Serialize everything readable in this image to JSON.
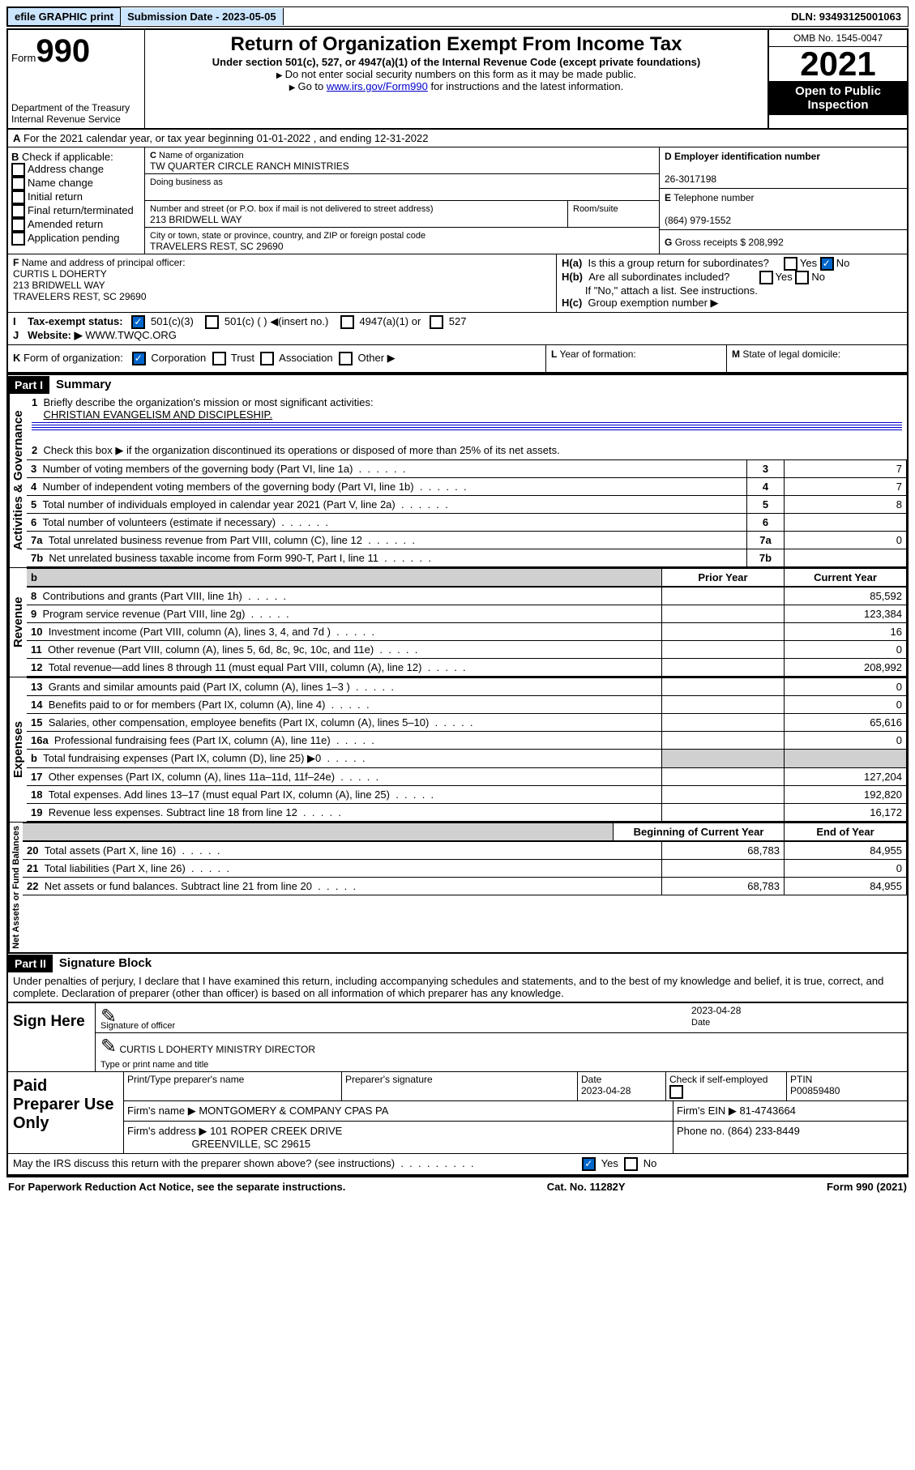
{
  "top": {
    "efile": "efile GRAPHIC print",
    "submission": "Submission Date - 2023-05-05",
    "dln": "DLN: 93493125001063"
  },
  "header": {
    "form_word": "Form",
    "form_num": "990",
    "title": "Return of Organization Exempt From Income Tax",
    "sub1": "Under section 501(c), 527, or 4947(a)(1) of the Internal Revenue Code (except private foundations)",
    "sub2": "Do not enter social security numbers on this form as it may be made public.",
    "sub3_a": "Go to ",
    "sub3_link": "www.irs.gov/Form990",
    "sub3_b": " for instructions and the latest information.",
    "dept": "Department of the Treasury",
    "irs": "Internal Revenue Service",
    "omb": "OMB No. 1545-0047",
    "year": "2021",
    "open": "Open to Public Inspection"
  },
  "A": {
    "line": "For the 2021 calendar year, or tax year beginning 01-01-2022   , and ending 12-31-2022"
  },
  "B": {
    "hdr": "Check if applicable:",
    "opts": [
      "Address change",
      "Name change",
      "Initial return",
      "Final return/terminated",
      "Amended return",
      "Application pending"
    ]
  },
  "C": {
    "name_lbl": "Name of organization",
    "name": "TW QUARTER CIRCLE RANCH MINISTRIES",
    "dba_lbl": "Doing business as",
    "addr_lbl": "Number and street (or P.O. box if mail is not delivered to street address)",
    "room_lbl": "Room/suite",
    "addr": "213 BRIDWELL WAY",
    "city_lbl": "City or town, state or province, country, and ZIP or foreign postal code",
    "city": "TRAVELERS REST, SC  29690"
  },
  "D": {
    "lbl": "Employer identification number",
    "val": "26-3017198"
  },
  "E": {
    "lbl": "Telephone number",
    "val": "(864) 979-1552"
  },
  "G": {
    "lbl": "Gross receipts $",
    "val": "208,992"
  },
  "F": {
    "lbl": "Name and address of principal officer:",
    "name": "CURTIS L DOHERTY",
    "addr": "213 BRIDWELL WAY",
    "city": "TRAVELERS REST, SC  29690"
  },
  "H": {
    "a": "Is this a group return for subordinates?",
    "b": "Are all subordinates included?",
    "note": "If \"No,\" attach a list. See instructions.",
    "c": "Group exemption number"
  },
  "I": {
    "lbl": "Tax-exempt status:",
    "c1": "501(c)(3)",
    "c2": "501(c) (  )",
    "c2b": "(insert no.)",
    "c3": "4947(a)(1) or",
    "c4": "527"
  },
  "J": {
    "lbl": "Website:",
    "val": "WWW.TWQC.ORG"
  },
  "K": {
    "lbl": "Form of organization:",
    "opts": [
      "Corporation",
      "Trust",
      "Association",
      "Other"
    ]
  },
  "L": {
    "lbl": "Year of formation:"
  },
  "M": {
    "lbl": "State of legal domicile:"
  },
  "part1": {
    "hdr": "Part I",
    "title": "Summary",
    "line1_lbl": "Briefly describe the organization's mission or most significant activities:",
    "line1_val": "CHRISTIAN EVANGELISM AND DISCIPLESHIP.",
    "line2": "Check this box ▶        if the organization discontinued its operations or disposed of more than 25% of its net assets.",
    "rows_gov": [
      {
        "n": "3",
        "lbl": "Number of voting members of the governing body (Part VI, line 1a)",
        "val": "7"
      },
      {
        "n": "4",
        "lbl": "Number of independent voting members of the governing body (Part VI, line 1b)",
        "val": "7"
      },
      {
        "n": "5",
        "lbl": "Total number of individuals employed in calendar year 2021 (Part V, line 2a)",
        "val": "8"
      },
      {
        "n": "6",
        "lbl": "Total number of volunteers (estimate if necessary)",
        "val": ""
      },
      {
        "n": "7a",
        "lbl": "Total unrelated business revenue from Part VIII, column (C), line 12",
        "val": "0"
      },
      {
        "n": "7b",
        "lbl": "Net unrelated business taxable income from Form 990-T, Part I, line 11",
        "val": ""
      }
    ],
    "col_prior": "Prior Year",
    "col_current": "Current Year",
    "rows_rev": [
      {
        "n": "8",
        "lbl": "Contributions and grants (Part VIII, line 1h)",
        "p": "",
        "c": "85,592"
      },
      {
        "n": "9",
        "lbl": "Program service revenue (Part VIII, line 2g)",
        "p": "",
        "c": "123,384"
      },
      {
        "n": "10",
        "lbl": "Investment income (Part VIII, column (A), lines 3, 4, and 7d )",
        "p": "",
        "c": "16"
      },
      {
        "n": "11",
        "lbl": "Other revenue (Part VIII, column (A), lines 5, 6d, 8c, 9c, 10c, and 11e)",
        "p": "",
        "c": "0"
      },
      {
        "n": "12",
        "lbl": "Total revenue—add lines 8 through 11 (must equal Part VIII, column (A), line 12)",
        "p": "",
        "c": "208,992"
      }
    ],
    "rows_exp": [
      {
        "n": "13",
        "lbl": "Grants and similar amounts paid (Part IX, column (A), lines 1–3 )",
        "p": "",
        "c": "0"
      },
      {
        "n": "14",
        "lbl": "Benefits paid to or for members (Part IX, column (A), line 4)",
        "p": "",
        "c": "0"
      },
      {
        "n": "15",
        "lbl": "Salaries, other compensation, employee benefits (Part IX, column (A), lines 5–10)",
        "p": "",
        "c": "65,616"
      },
      {
        "n": "16a",
        "lbl": "Professional fundraising fees (Part IX, column (A), line 11e)",
        "p": "",
        "c": "0"
      },
      {
        "n": "b",
        "lbl": "Total fundraising expenses (Part IX, column (D), line 25) ▶0",
        "p": "shaded",
        "c": "shaded"
      },
      {
        "n": "17",
        "lbl": "Other expenses (Part IX, column (A), lines 11a–11d, 11f–24e)",
        "p": "",
        "c": "127,204"
      },
      {
        "n": "18",
        "lbl": "Total expenses. Add lines 13–17 (must equal Part IX, column (A), line 25)",
        "p": "",
        "c": "192,820"
      },
      {
        "n": "19",
        "lbl": "Revenue less expenses. Subtract line 18 from line 12",
        "p": "",
        "c": "16,172"
      }
    ],
    "col_begin": "Beginning of Current Year",
    "col_end": "End of Year",
    "rows_net": [
      {
        "n": "20",
        "lbl": "Total assets (Part X, line 16)",
        "p": "68,783",
        "c": "84,955"
      },
      {
        "n": "21",
        "lbl": "Total liabilities (Part X, line 26)",
        "p": "",
        "c": "0"
      },
      {
        "n": "22",
        "lbl": "Net assets or fund balances. Subtract line 21 from line 20",
        "p": "68,783",
        "c": "84,955"
      }
    ],
    "vlabels": {
      "gov": "Activities & Governance",
      "rev": "Revenue",
      "exp": "Expenses",
      "net": "Net Assets or Fund Balances"
    }
  },
  "part2": {
    "hdr": "Part II",
    "title": "Signature Block",
    "decl": "Under penalties of perjury, I declare that I have examined this return, including accompanying schedules and statements, and to the best of my knowledge and belief, it is true, correct, and complete. Declaration of preparer (other than officer) is based on all information of which preparer has any knowledge.",
    "sign_here": "Sign Here",
    "sig_officer": "Signature of officer",
    "date": "Date",
    "date_val": "2023-04-28",
    "officer_name": "CURTIS L DOHERTY  MINISTRY DIRECTOR",
    "type_name": "Type or print name and title",
    "paid": "Paid Preparer Use Only",
    "pt_name_lbl": "Print/Type preparer's name",
    "pt_sig_lbl": "Preparer's signature",
    "pt_date": "2023-04-28",
    "pt_check": "Check         if self-employed",
    "ptin_lbl": "PTIN",
    "ptin": "P00859480",
    "firm_name_lbl": "Firm's name    ▶",
    "firm_name": "MONTGOMERY & COMPANY CPAS PA",
    "firm_ein_lbl": "Firm's EIN ▶",
    "firm_ein": "81-4743664",
    "firm_addr_lbl": "Firm's address ▶",
    "firm_addr": "101 ROPER CREEK DRIVE",
    "firm_city": "GREENVILLE, SC  29615",
    "phone_lbl": "Phone no.",
    "phone": "(864) 233-8449",
    "discuss": "May the IRS discuss this return with the preparer shown above? (see instructions)"
  },
  "footer": {
    "left": "For Paperwork Reduction Act Notice, see the separate instructions.",
    "mid": "Cat. No. 11282Y",
    "right": "Form 990 (2021)"
  }
}
